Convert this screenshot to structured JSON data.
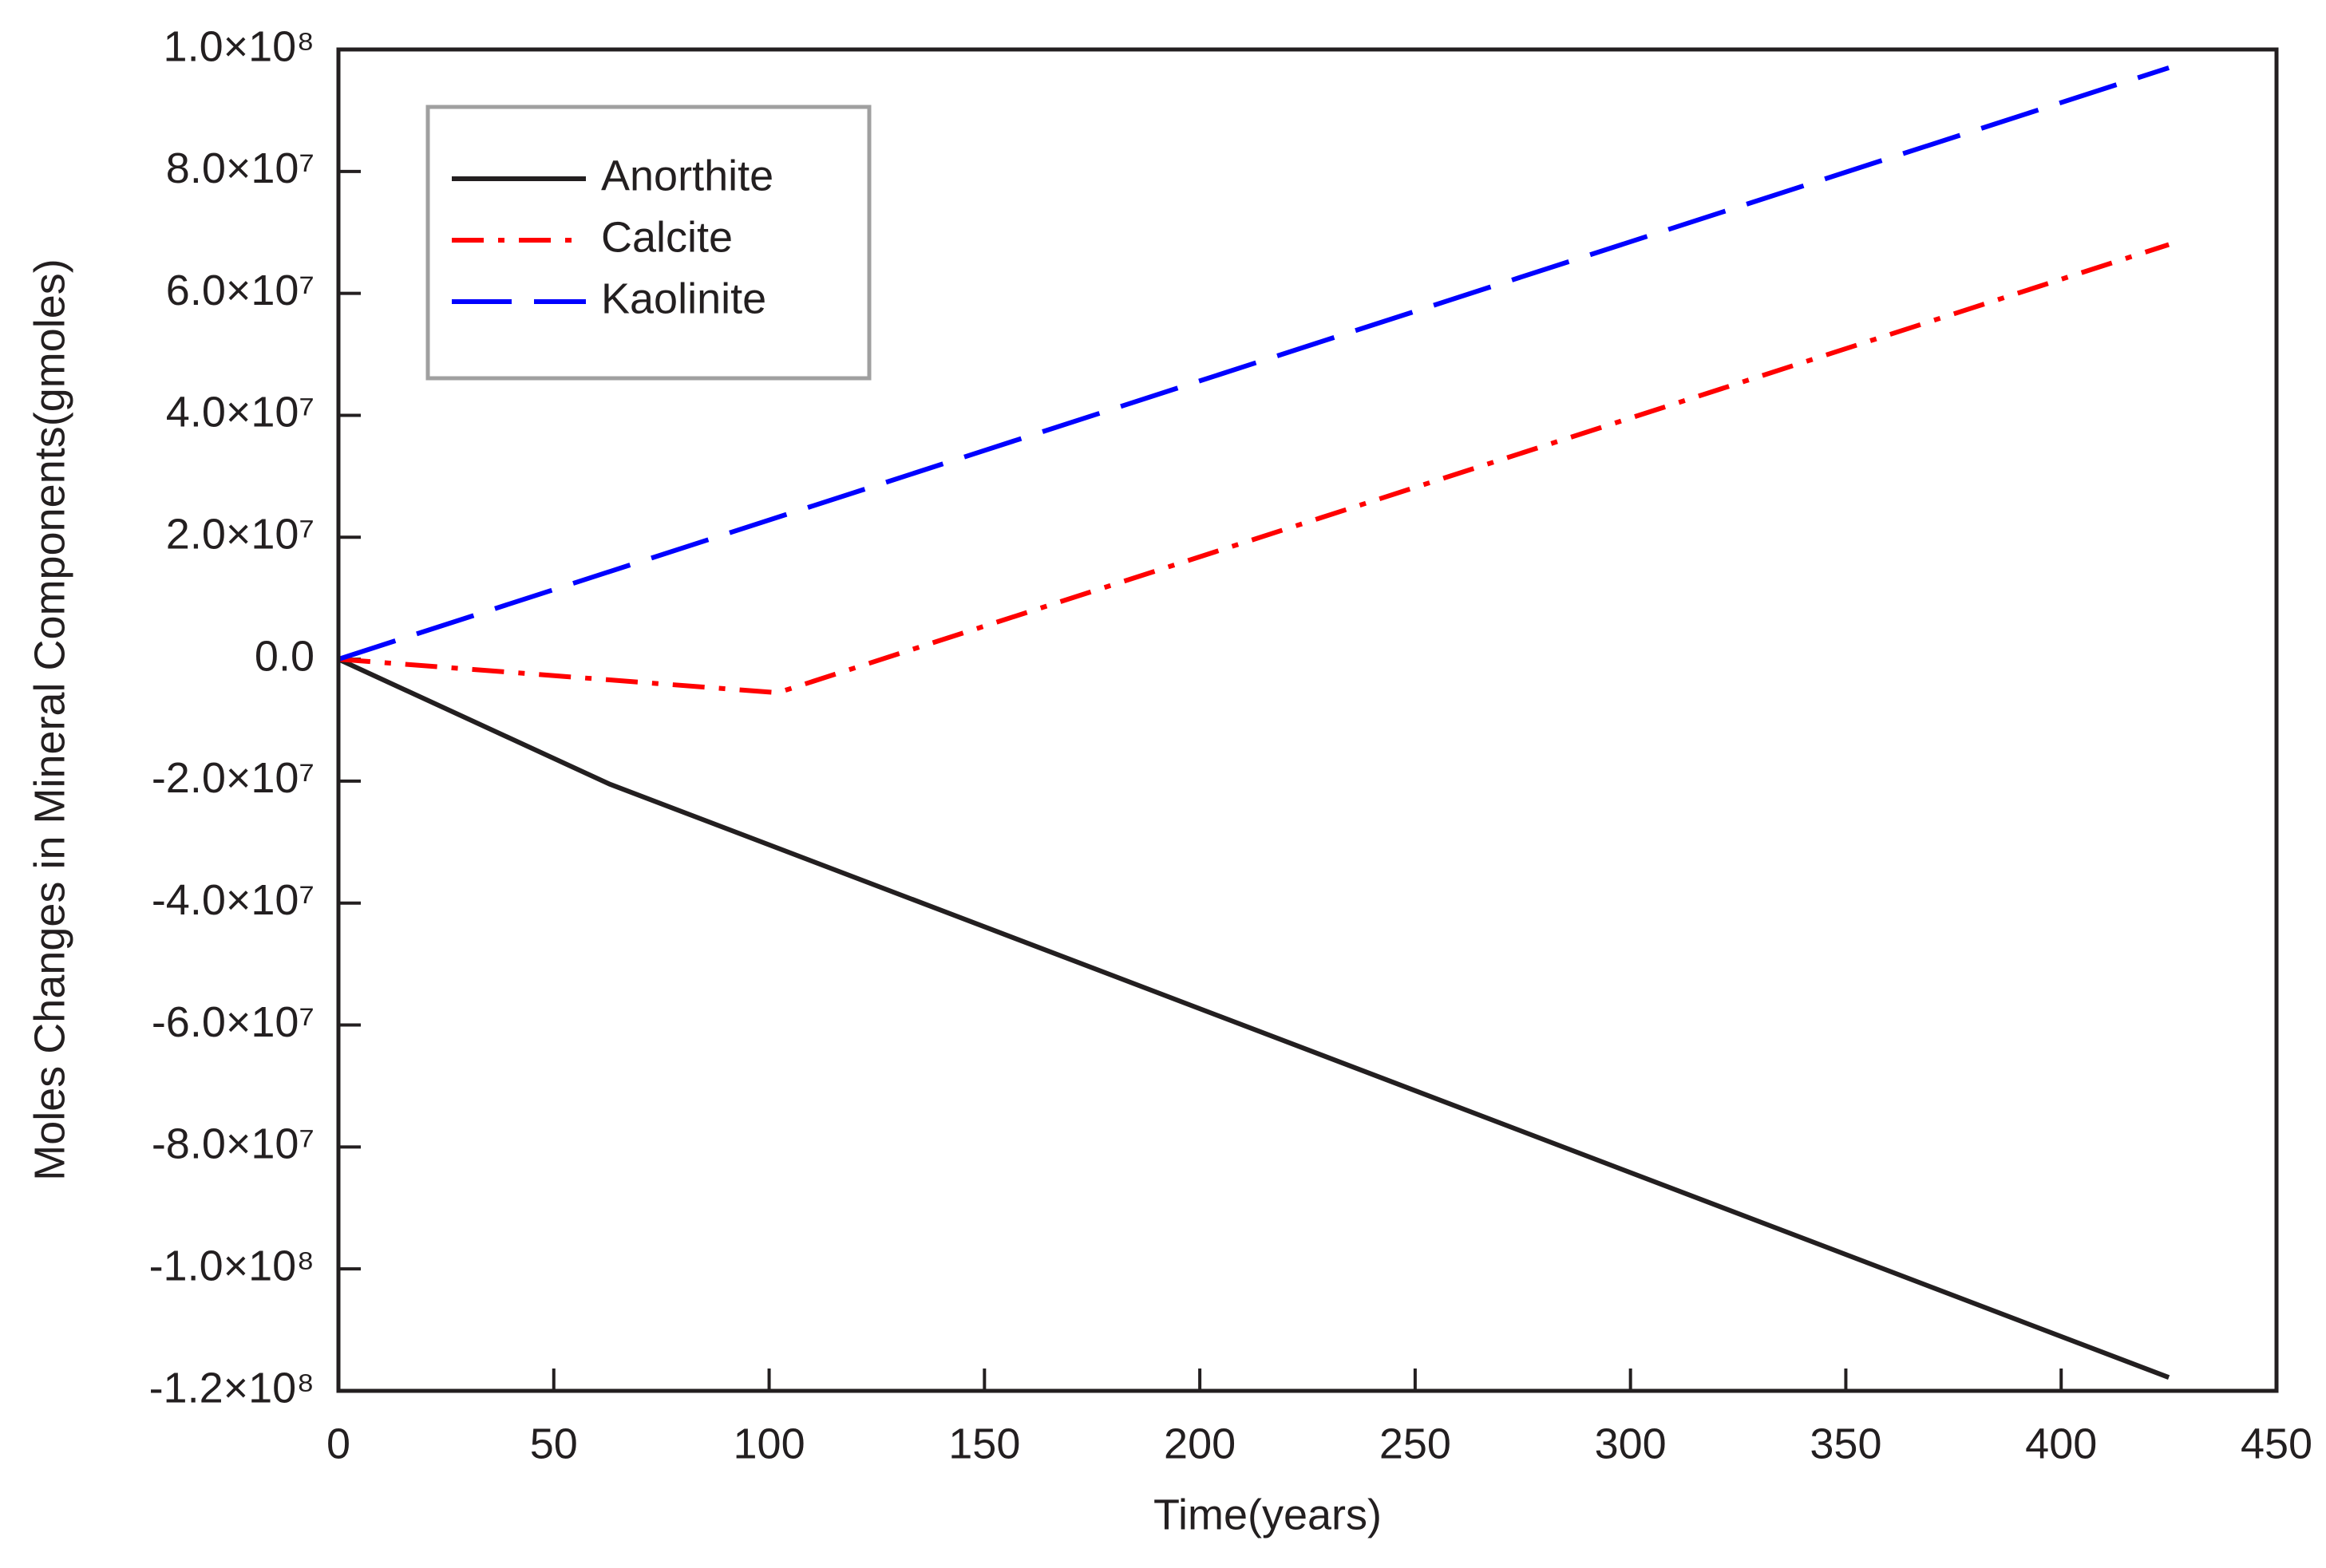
{
  "chart_data": {
    "type": "line",
    "x_label": "Time(years)",
    "y_label": "Moles Changes in Mineral Components(gmoles)",
    "xlim": [
      0,
      450
    ],
    "xticks": [
      0,
      50,
      100,
      150,
      200,
      250,
      300,
      350,
      400,
      450
    ],
    "ylim": [
      -120000000,
      100000000
    ],
    "yticks": [
      {
        "value": -120000000,
        "label": "-1.2×10⁸"
      },
      {
        "value": -100000000,
        "label": "-1.0×10⁸"
      },
      {
        "value": -80000000,
        "label": "-8.0×10⁷"
      },
      {
        "value": -60000000,
        "label": "-6.0×10⁷"
      },
      {
        "value": -40000000,
        "label": "-4.0×10⁷"
      },
      {
        "value": -20000000,
        "label": "-2.0×10⁷"
      },
      {
        "value": 0,
        "label": "0.0"
      },
      {
        "value": 20000000,
        "label": "2.0×10⁷"
      },
      {
        "value": 40000000,
        "label": "4.0×10⁷"
      },
      {
        "value": 60000000,
        "label": "6.0×10⁷"
      },
      {
        "value": 80000000,
        "label": "8.0×10⁷"
      },
      {
        "value": 100000000,
        "label": "1.0×10⁸"
      }
    ],
    "legend": "upper left",
    "series": [
      {
        "name": "Anorthite",
        "color": "#231f20",
        "style": "solid",
        "x": [
          0,
          63,
          425
        ],
        "values": [
          0,
          -20500000,
          -117800000
        ]
      },
      {
        "name": "Calcite",
        "color": "#ff0000",
        "style": "dashdot",
        "x": [
          0,
          102,
          425
        ],
        "values": [
          0,
          -5500000,
          68000000
        ]
      },
      {
        "name": "Kaolinite",
        "color": "#0000ff",
        "style": "dashed",
        "x": [
          0,
          425
        ],
        "values": [
          0,
          97000000
        ]
      }
    ]
  }
}
